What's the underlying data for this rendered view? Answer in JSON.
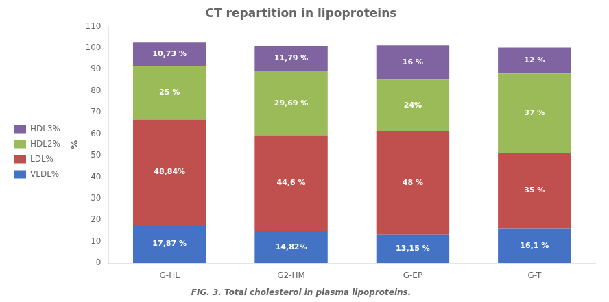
{
  "chart_data": {
    "type": "bar",
    "title": "CT repartition in lipoproteins",
    "caption": "FIG. 3. Total cholesterol in plasma lipoproteins.",
    "ylabel": "%",
    "categories": [
      "G-HL",
      "G2-HM",
      "G-EP",
      "G-T"
    ],
    "series": [
      {
        "name": "VLDL%",
        "color": "#4472C4",
        "values": [
          17.87,
          14.82,
          13.15,
          16.1
        ],
        "value_labels": [
          "17,87 %",
          "14,82%",
          "13,15 %",
          "16,1 %"
        ]
      },
      {
        "name": "LDL%",
        "color": "#C0504D",
        "values": [
          48.84,
          44.6,
          48.0,
          35.0
        ],
        "value_labels": [
          "48,84%",
          "44,6 %",
          "48 %",
          "35 %"
        ]
      },
      {
        "name": "HDL2%",
        "color": "#9BBB59",
        "values": [
          25.0,
          29.69,
          24.0,
          37.0
        ],
        "value_labels": [
          "25 %",
          "29,69 %",
          "24%",
          "37 %"
        ]
      },
      {
        "name": "HDL3%",
        "color": "#8064A2",
        "values": [
          10.73,
          11.79,
          16.0,
          12.0
        ],
        "value_labels": [
          "10,73 %",
          "11,79 %",
          "16 %",
          "12 %"
        ]
      }
    ],
    "ylim": [
      0,
      110
    ],
    "yticks": [
      0,
      10,
      20,
      30,
      40,
      50,
      60,
      70,
      80,
      90,
      100,
      110
    ],
    "stacked": true,
    "data_labels": true,
    "legend": "left",
    "grid": false
  }
}
